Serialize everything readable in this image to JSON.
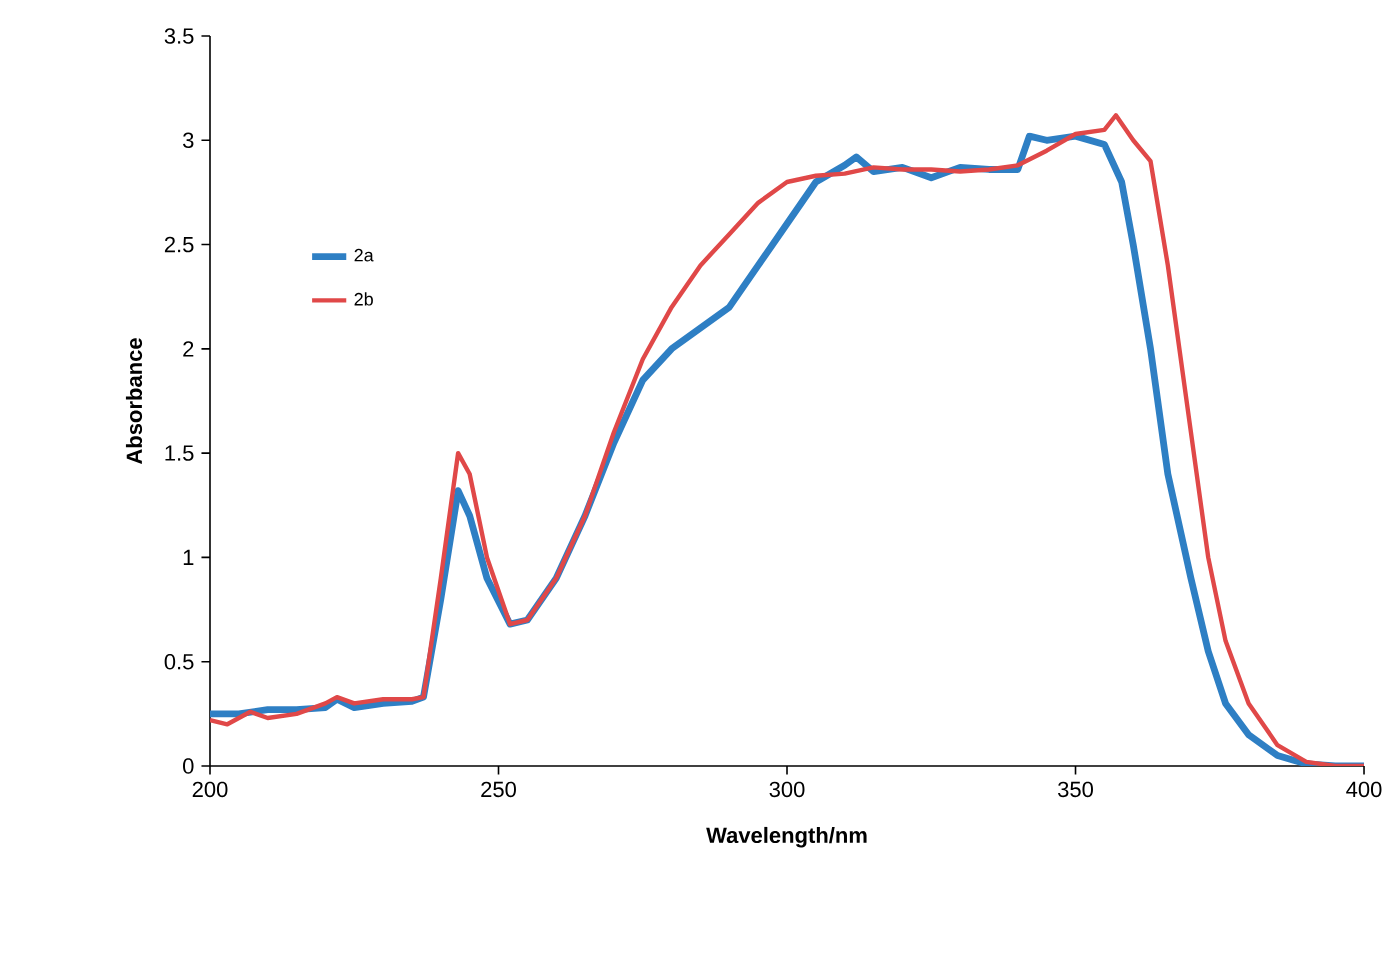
{
  "chart_data": {
    "type": "line",
    "xlabel": "Wavelength/nm",
    "ylabel": "Absorbance",
    "xlim": [
      200,
      400
    ],
    "ylim": [
      0,
      3.5
    ],
    "xticks": [
      200,
      250,
      300,
      350,
      400
    ],
    "yticks": [
      0,
      0.5,
      1,
      1.5,
      2,
      2.5,
      3,
      3.5
    ],
    "grid": false,
    "legend": "top left",
    "marker": "none",
    "line_style": "solid",
    "series": [
      {
        "name": "2a",
        "color": "#2e7fc4",
        "x": [
          200,
          205,
          210,
          215,
          220,
          222,
          225,
          230,
          235,
          237,
          240,
          243,
          245,
          248,
          252,
          255,
          260,
          265,
          270,
          275,
          280,
          285,
          290,
          295,
          300,
          305,
          310,
          312,
          315,
          320,
          325,
          330,
          335,
          340,
          342,
          345,
          350,
          355,
          358,
          360,
          363,
          366,
          370,
          373,
          376,
          380,
          385,
          390,
          395,
          400
        ],
        "values": [
          0.25,
          0.25,
          0.27,
          0.27,
          0.28,
          0.32,
          0.28,
          0.3,
          0.31,
          0.33,
          0.8,
          1.32,
          1.2,
          0.9,
          0.68,
          0.7,
          0.9,
          1.2,
          1.55,
          1.85,
          2.0,
          2.1,
          2.2,
          2.4,
          2.6,
          2.8,
          2.88,
          2.92,
          2.85,
          2.87,
          2.82,
          2.87,
          2.86,
          2.86,
          3.02,
          3.0,
          3.02,
          2.98,
          2.8,
          2.5,
          2.0,
          1.4,
          0.9,
          0.55,
          0.3,
          0.15,
          0.05,
          0.01,
          0.0,
          0.0
        ]
      },
      {
        "name": "2b",
        "color": "#e04848",
        "x": [
          200,
          203,
          207,
          210,
          215,
          220,
          222,
          225,
          230,
          235,
          237,
          240,
          243,
          245,
          248,
          252,
          255,
          260,
          265,
          270,
          275,
          280,
          285,
          290,
          295,
          300,
          305,
          310,
          315,
          320,
          325,
          330,
          335,
          340,
          345,
          350,
          355,
          357,
          360,
          363,
          366,
          370,
          373,
          376,
          380,
          385,
          390,
          395,
          400
        ],
        "values": [
          0.22,
          0.2,
          0.26,
          0.23,
          0.25,
          0.3,
          0.33,
          0.3,
          0.32,
          0.32,
          0.33,
          0.9,
          1.5,
          1.4,
          1.0,
          0.68,
          0.7,
          0.9,
          1.2,
          1.6,
          1.95,
          2.2,
          2.4,
          2.55,
          2.7,
          2.8,
          2.83,
          2.84,
          2.87,
          2.86,
          2.86,
          2.85,
          2.86,
          2.88,
          2.95,
          3.03,
          3.05,
          3.12,
          3.0,
          2.9,
          2.4,
          1.6,
          1.0,
          0.6,
          0.3,
          0.1,
          0.02,
          0.0,
          0.0
        ]
      }
    ]
  }
}
